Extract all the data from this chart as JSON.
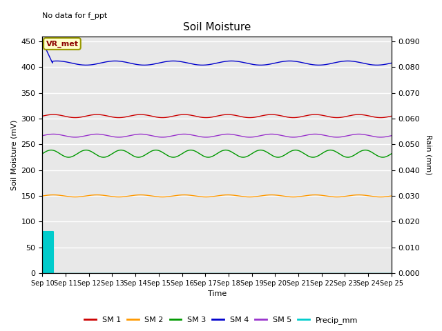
{
  "title": "Soil Moisture",
  "top_left_text": "No data for f_ppt",
  "xlabel": "Time",
  "ylabel_left": "Soil Moisture (mV)",
  "ylabel_right": "Rain (mm)",
  "x_start": 10,
  "x_end": 25,
  "x_ticks": [
    10,
    11,
    12,
    13,
    14,
    15,
    16,
    17,
    18,
    19,
    20,
    21,
    22,
    23,
    24,
    25
  ],
  "x_tick_labels": [
    "Sep 10",
    "Sep 11",
    "Sep 12",
    "Sep 13",
    "Sep 14",
    "Sep 15",
    "Sep 16",
    "Sep 17",
    "Sep 18",
    "Sep 19",
    "Sep 20",
    "Sep 21",
    "Sep 22",
    "Sep 23",
    "Sep 24",
    "Sep 25"
  ],
  "ylim_left": [
    0,
    460
  ],
  "ylim_right": [
    0,
    0.092
  ],
  "yticks_left": [
    0,
    50,
    100,
    150,
    200,
    250,
    300,
    350,
    400,
    450
  ],
  "yticks_right": [
    0.0,
    0.01,
    0.02,
    0.03,
    0.04,
    0.05,
    0.06,
    0.07,
    0.08,
    0.09
  ],
  "sm1_base": 305,
  "sm1_amp": 3,
  "sm1_freq": 8,
  "sm2_base": 150,
  "sm2_amp": 2,
  "sm2_freq": 8,
  "sm3_base": 232,
  "sm3_amp": 7,
  "sm3_freq": 10,
  "sm4_base": 408,
  "sm4_amp": 4,
  "sm4_freq": 6,
  "sm5_base": 267,
  "sm5_amp": 3,
  "sm5_freq": 8,
  "sm1_color": "#cc0000",
  "sm2_color": "#ff9900",
  "sm3_color": "#009900",
  "sm4_color": "#0000cc",
  "sm5_color": "#9933cc",
  "precip_color": "#00cccc",
  "precip_spike_x": 10.45,
  "precip_spike_y": 80,
  "background_color": "#e8e8e8",
  "grid_color": "#ffffff",
  "legend_box_color": "#ffffcc",
  "legend_box_text": "VR_met",
  "fig_background": "#ffffff",
  "n_points": 800
}
